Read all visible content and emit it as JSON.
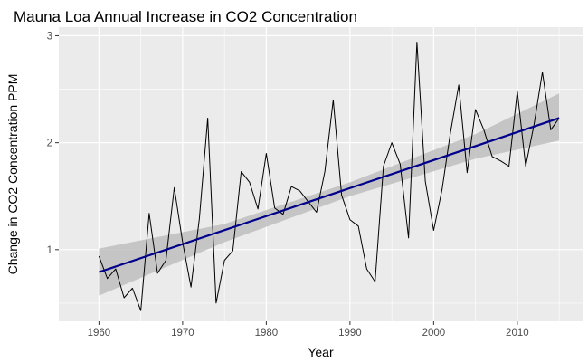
{
  "chart_data": {
    "type": "line",
    "title": "Mauna Loa Annual Increase in CO2 Concentration",
    "xlabel": "Year",
    "ylabel": "Change in CO2 Concentration PPM",
    "xlim": [
      1955.2,
      2017.8
    ],
    "ylim": [
      0.33,
      3.08
    ],
    "x_ticks": [
      1960,
      1970,
      1980,
      1990,
      2000,
      2010
    ],
    "x_tick_labels": [
      "1960",
      "1970",
      "1980",
      "1990",
      "2000",
      "2010"
    ],
    "y_ticks": [
      1,
      2,
      3
    ],
    "y_tick_labels": [
      "1",
      "2",
      "3"
    ],
    "grid": true,
    "panel_background": "#ebebeb",
    "grid_color": "#ffffff",
    "series": [
      {
        "kind": "observed",
        "color": "#000000",
        "x": [
          1960,
          1961,
          1962,
          1963,
          1964,
          1965,
          1966,
          1967,
          1968,
          1969,
          1970,
          1971,
          1972,
          1973,
          1974,
          1975,
          1976,
          1977,
          1978,
          1979,
          1980,
          1981,
          1982,
          1983,
          1984,
          1985,
          1986,
          1987,
          1988,
          1989,
          1990,
          1991,
          1992,
          1993,
          1994,
          1995,
          1996,
          1997,
          1998,
          1999,
          2000,
          2001,
          2002,
          2003,
          2004,
          2005,
          2006,
          2007,
          2008,
          2009,
          2010,
          2011,
          2012,
          2013,
          2014,
          2015
        ],
        "y": [
          0.94,
          0.73,
          0.82,
          0.55,
          0.64,
          0.43,
          1.34,
          0.78,
          0.9,
          1.58,
          1.07,
          0.65,
          1.29,
          2.23,
          0.5,
          0.9,
          0.99,
          1.73,
          1.63,
          1.38,
          1.9,
          1.39,
          1.33,
          1.59,
          1.55,
          1.45,
          1.35,
          1.73,
          2.4,
          1.51,
          1.28,
          1.22,
          0.82,
          0.7,
          1.78,
          2.0,
          1.8,
          1.11,
          2.94,
          1.64,
          1.18,
          1.56,
          2.09,
          2.54,
          1.72,
          2.31,
          2.12,
          1.87,
          1.83,
          1.78,
          2.48,
          1.78,
          2.17,
          2.66,
          2.12,
          2.23
        ]
      },
      {
        "kind": "linear-trend",
        "color": "#00008b",
        "x": [
          1960,
          2015
        ],
        "y": [
          0.79,
          2.23
        ]
      }
    ],
    "confidence_band": {
      "color": "#bebebe",
      "x": [
        1960,
        1975,
        1990,
        2005,
        2015
      ],
      "lower": [
        0.57,
        1.07,
        1.5,
        1.85,
        2.02
      ],
      "upper": [
        1.01,
        1.24,
        1.63,
        2.08,
        2.46
      ]
    }
  }
}
